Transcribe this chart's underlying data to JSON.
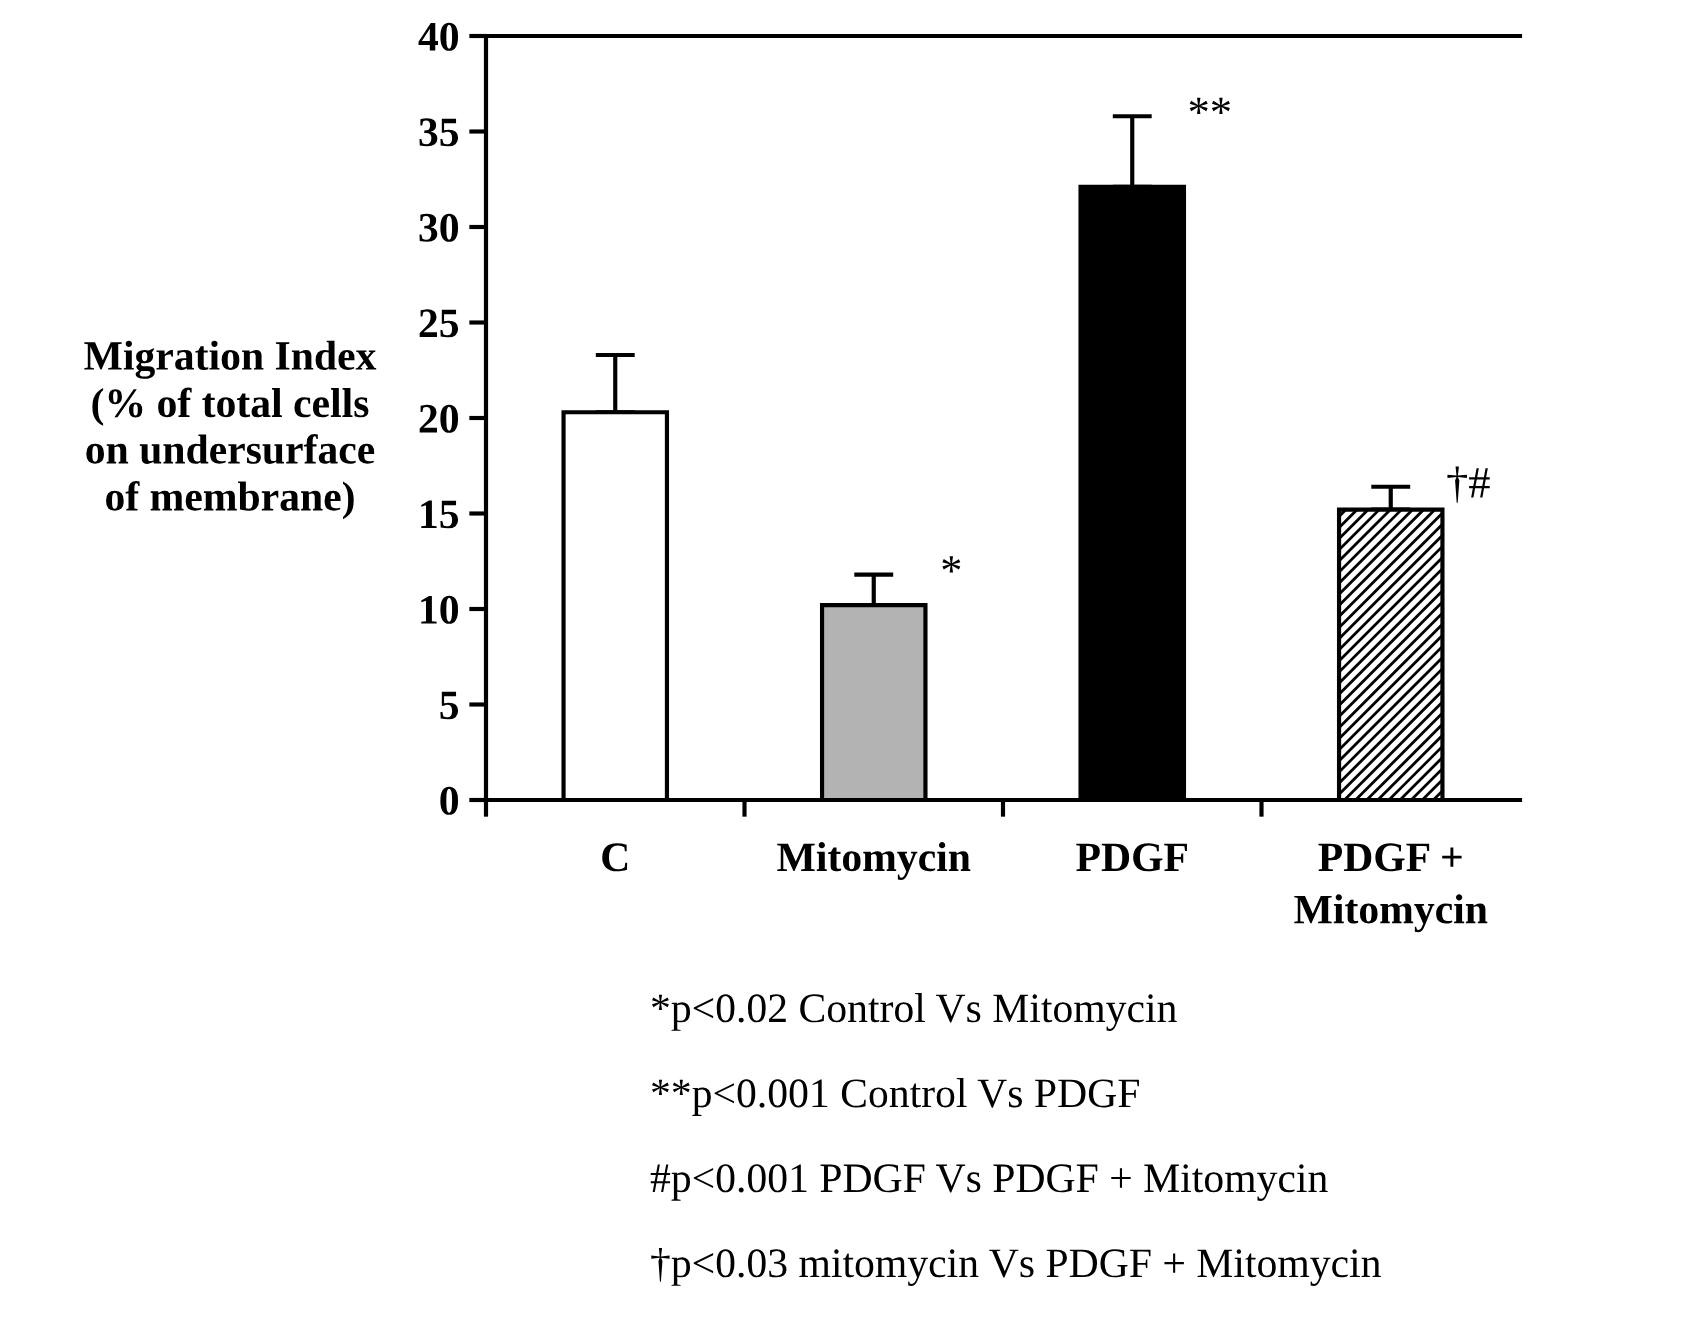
{
  "chart_data": {
    "type": "bar",
    "ylabel": "Migration Index\n(% of total cells\non undersurface\nof membrane)",
    "categories": [
      "C",
      "Mitomycin",
      "PDGF",
      "PDGF +\nMitomycin"
    ],
    "values": [
      20.3,
      10.2,
      32.1,
      15.2
    ],
    "errors": [
      [
        20.3,
        23.3
      ],
      [
        10.2,
        11.8
      ],
      [
        32.1,
        35.8
      ],
      [
        15.2,
        16.4
      ]
    ],
    "colors": [
      "#ffffff",
      "#b3b3b3",
      "#000000",
      "#000000"
    ],
    "ylim": [
      0,
      40
    ],
    "yticks": [
      0,
      5,
      10,
      15,
      20,
      25,
      30,
      35,
      40
    ],
    "grid": false,
    "legend": false,
    "annotations": [
      {
        "text": "*",
        "x": "Mitomycin",
        "y": 11.8
      },
      {
        "text": "**",
        "x": "PDGF",
        "y": 35.8
      },
      {
        "text": "†#",
        "x": "PDGF +\nMitomycin",
        "y": 16.4
      },
      "*p<0.02 Control Vs Mitomycin",
      "**p<0.001 Control Vs PDGF",
      "#p<0.001 PDGF Vs PDGF + Mitomycin",
      "†p<0.03 mitomycin Vs PDGF + Mitomycin"
    ]
  }
}
